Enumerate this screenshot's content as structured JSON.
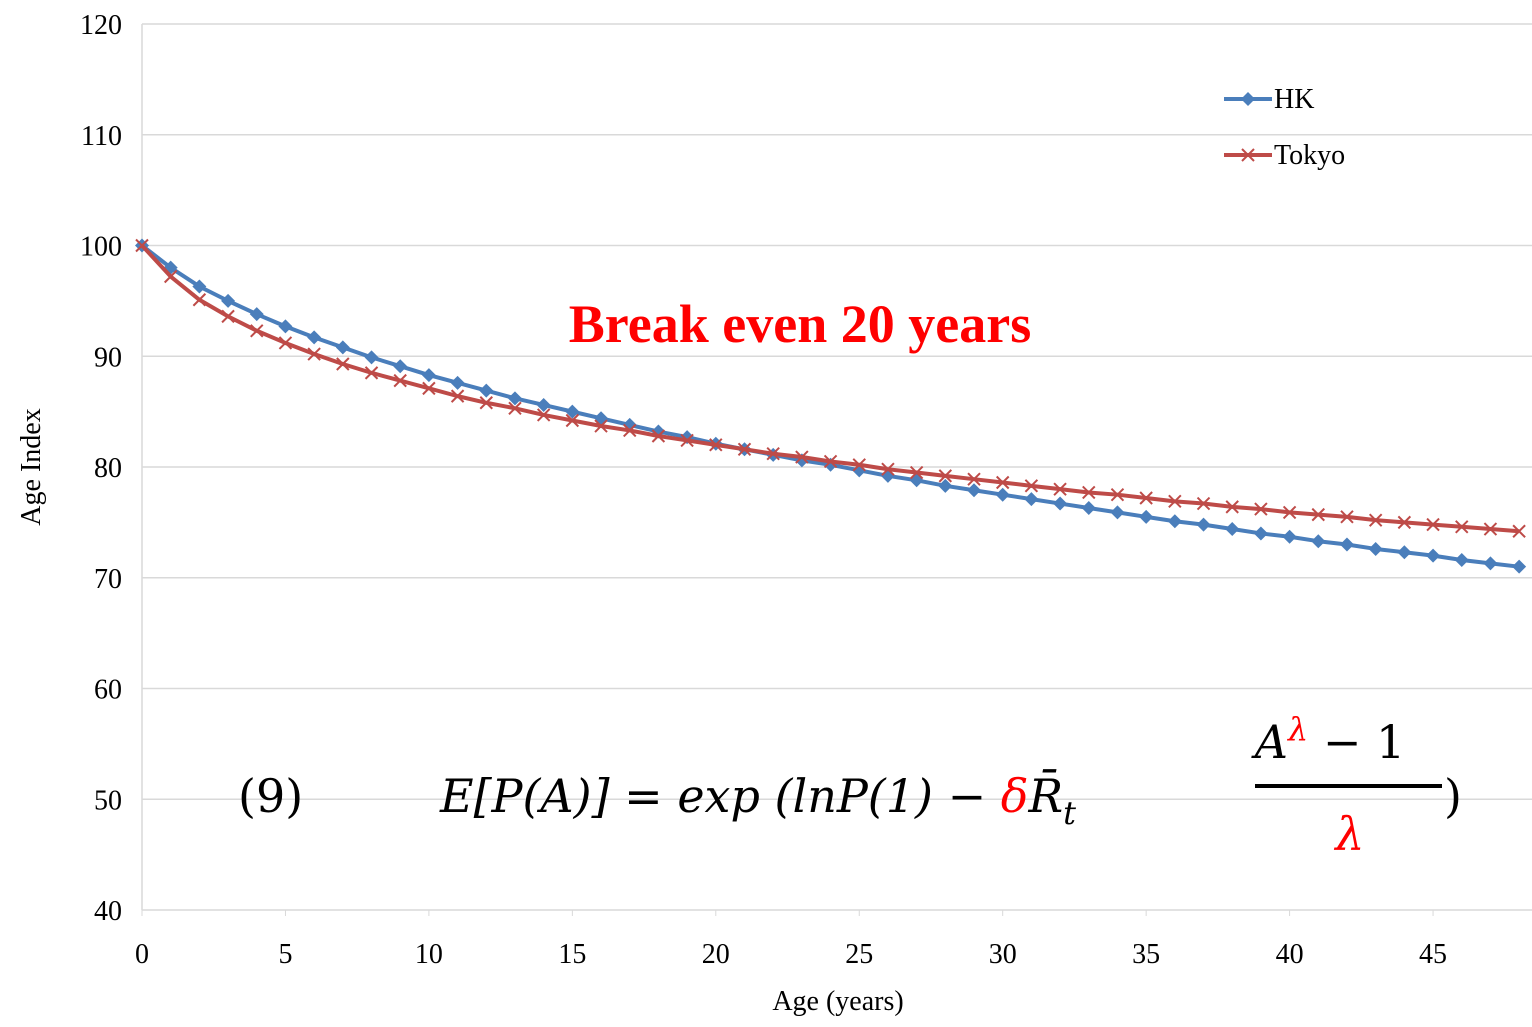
{
  "chart_data": {
    "type": "line",
    "xlabel": "Age (years)",
    "ylabel": "Age Index",
    "x": [
      0,
      1,
      2,
      3,
      4,
      5,
      6,
      7,
      8,
      9,
      10,
      11,
      12,
      13,
      14,
      15,
      16,
      17,
      18,
      19,
      20,
      21,
      22,
      23,
      24,
      25,
      26,
      27,
      28,
      29,
      30,
      31,
      32,
      33,
      34,
      35,
      36,
      37,
      38,
      39,
      40,
      41,
      42,
      43,
      44,
      45,
      46,
      47,
      48
    ],
    "series": [
      {
        "name": "HK",
        "color": "#4a7ebb",
        "marker": "diamond",
        "values": [
          100,
          98,
          96.3,
          95,
          93.8,
          92.7,
          91.7,
          90.8,
          89.9,
          89.1,
          88.3,
          87.6,
          86.9,
          86.2,
          85.6,
          85.0,
          84.4,
          83.8,
          83.2,
          82.7,
          82.1,
          81.6,
          81.1,
          80.6,
          80.2,
          79.7,
          79.2,
          78.8,
          78.3,
          77.9,
          77.5,
          77.1,
          76.7,
          76.3,
          75.9,
          75.5,
          75.1,
          74.8,
          74.4,
          74.0,
          73.7,
          73.3,
          73.0,
          72.6,
          72.3,
          72.0,
          71.6,
          71.3,
          71.0
        ]
      },
      {
        "name": "Tokyo",
        "color": "#be4b48",
        "marker": "x",
        "values": [
          100,
          97.2,
          95.1,
          93.6,
          92.3,
          91.2,
          90.2,
          89.3,
          88.5,
          87.8,
          87.1,
          86.4,
          85.8,
          85.3,
          84.7,
          84.2,
          83.7,
          83.3,
          82.8,
          82.4,
          82.0,
          81.6,
          81.2,
          80.9,
          80.5,
          80.2,
          79.8,
          79.5,
          79.2,
          78.9,
          78.6,
          78.3,
          78.0,
          77.7,
          77.5,
          77.2,
          76.9,
          76.7,
          76.4,
          76.2,
          75.9,
          75.7,
          75.5,
          75.2,
          75.0,
          74.8,
          74.6,
          74.4,
          74.2
        ]
      }
    ],
    "xlim": [
      0,
      48.5
    ],
    "xticks": [
      0,
      5,
      10,
      15,
      20,
      25,
      30,
      35,
      40,
      45
    ],
    "ylim": [
      40,
      120
    ],
    "yticks": [
      40,
      50,
      60,
      70,
      80,
      90,
      100,
      110,
      120
    ],
    "grid": true,
    "legend": "top-right",
    "annotation": "Break even 20 years",
    "equation": {
      "number": "(9)",
      "lhs": "E[P(A)] = exp (lnP(1) − ",
      "delta": "δ",
      "r": "R̄",
      "sub": "t",
      "num_base": "A",
      "num_exp": "λ",
      "num_rest": " − 1",
      "den": "λ",
      "close": ")"
    }
  }
}
